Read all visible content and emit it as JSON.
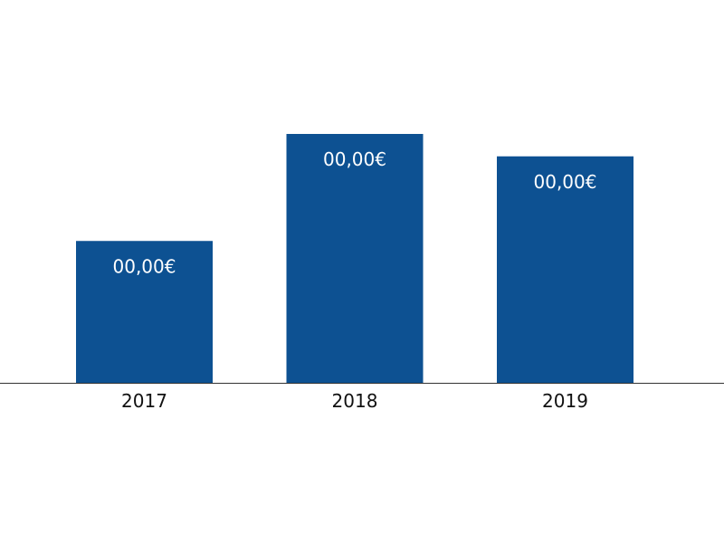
{
  "chart_data": {
    "type": "bar",
    "title": "",
    "xlabel": "",
    "ylabel": "",
    "categories": [
      "2017",
      "2018",
      "2019"
    ],
    "values": [
      0.57,
      1.0,
      0.91
    ],
    "data_labels": [
      "00,00€",
      "00,00€",
      "00,00€"
    ],
    "ylim": [
      0,
      1.0
    ],
    "grid": false,
    "y_axis_visible": false,
    "bar_color": "#0d5192",
    "axis_color": "#333333"
  }
}
